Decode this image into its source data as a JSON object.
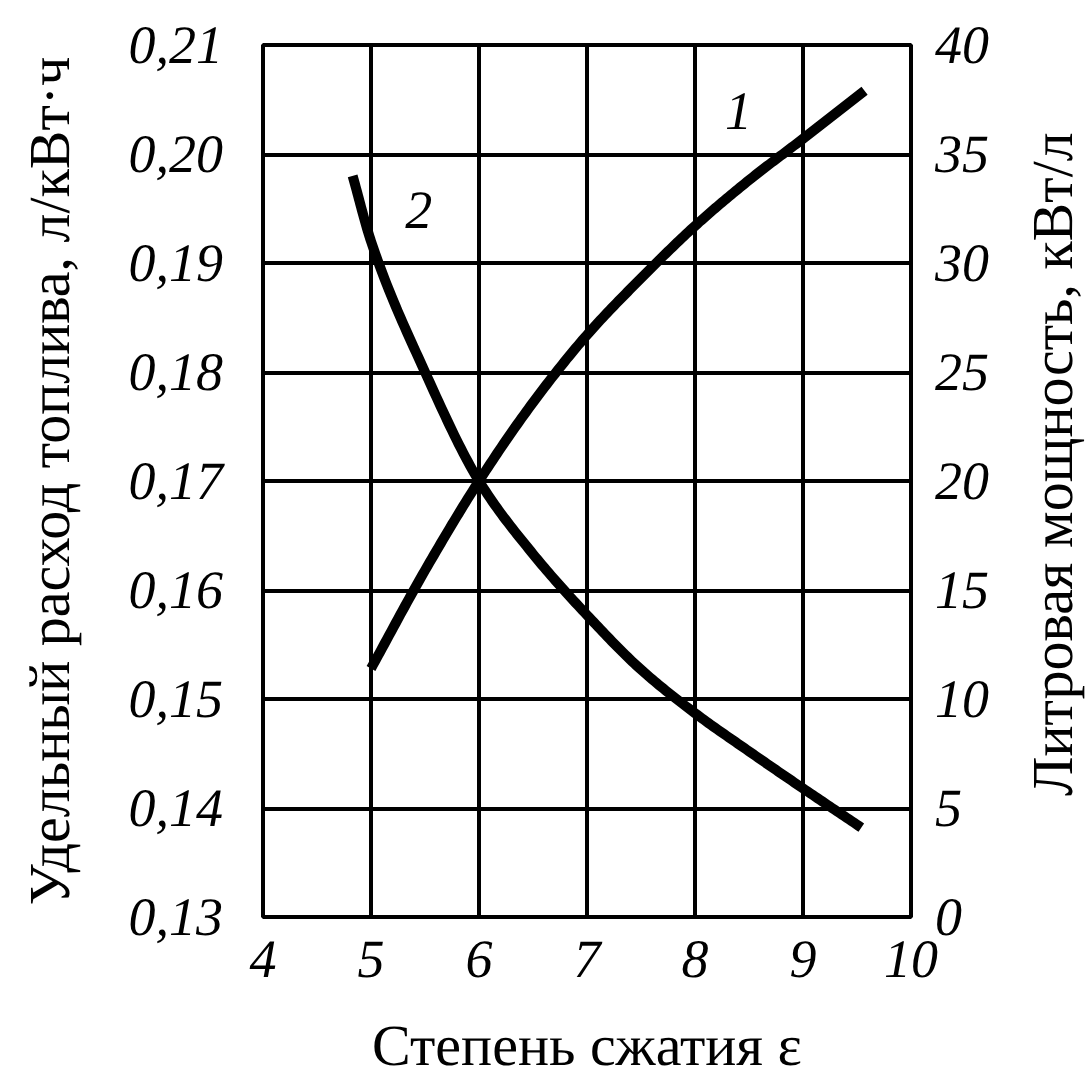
{
  "chart_data": {
    "type": "line",
    "xlabel": "Степень сжатия ε",
    "ylabel": "Удельный расход топлива, л/кВт·ч",
    "y2label": "Литровая мощность, кВт/л",
    "xlim": [
      4,
      10
    ],
    "xticks": [
      4,
      5,
      6,
      7,
      8,
      9,
      10
    ],
    "ylim": [
      0.13,
      0.21
    ],
    "yticks": [
      {
        "value": 0.13,
        "label": "0,13"
      },
      {
        "value": 0.14,
        "label": "0,14"
      },
      {
        "value": 0.15,
        "label": "0,15"
      },
      {
        "value": 0.16,
        "label": "0,16"
      },
      {
        "value": 0.17,
        "label": "0,17"
      },
      {
        "value": 0.18,
        "label": "0,18"
      },
      {
        "value": 0.19,
        "label": "0,19"
      },
      {
        "value": 0.2,
        "label": "0,20"
      },
      {
        "value": 0.21,
        "label": "0,21"
      }
    ],
    "y2lim": [
      0,
      40
    ],
    "y2ticks": [
      0,
      5,
      10,
      15,
      20,
      25,
      30,
      35,
      40
    ],
    "grid": true,
    "series": [
      {
        "name": "1",
        "axis": "y2",
        "color": "#000000",
        "x": [
          5,
          5.5,
          6,
          6.5,
          7,
          7.5,
          8,
          8.5,
          9,
          9.57
        ],
        "values": [
          11.4,
          15.9,
          20,
          23.6,
          26.7,
          29.3,
          31.7,
          33.8,
          35.7,
          37.9
        ]
      },
      {
        "name": "2",
        "color": "#000000",
        "x": [
          4.83,
          5,
          5.5,
          6,
          6.5,
          7,
          7.5,
          8,
          8.5,
          9,
          9.54
        ],
        "values": [
          0.198,
          0.192,
          0.18,
          0.17,
          0.1633,
          0.1577,
          0.1527,
          0.1487,
          0.1452,
          0.1418,
          0.1382
        ]
      }
    ]
  }
}
